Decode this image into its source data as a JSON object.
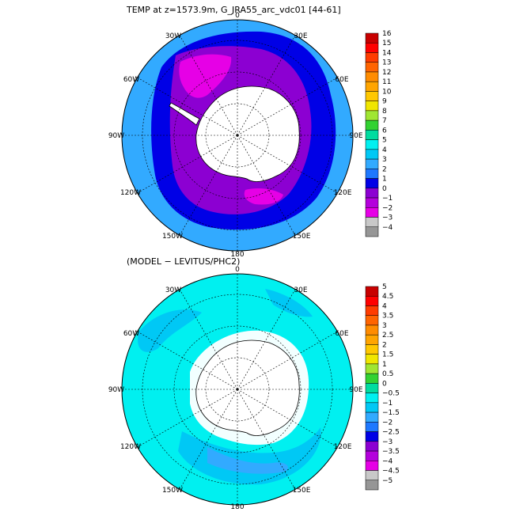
{
  "panels": [
    {
      "title": "TEMP at z=1573.9m, G_JRA55_arc_vdc01 [44-61]",
      "lon_labels": [
        "0",
        "30E",
        "60E",
        "90E",
        "120E",
        "150E",
        "180",
        "150W",
        "120W",
        "90W",
        "60W",
        "30W"
      ],
      "colorbar": {
        "labels": [
          "16",
          "15",
          "14",
          "13",
          "12",
          "11",
          "10",
          "9",
          "8",
          "7",
          "6",
          "5",
          "4",
          "3",
          "2",
          "1",
          "0",
          "−1",
          "−2",
          "−3",
          "−4"
        ],
        "colors": [
          "#c80000",
          "#ff0000",
          "#ff3c00",
          "#ff6400",
          "#ff8c00",
          "#ffa500",
          "#ffc800",
          "#f0e600",
          "#a0e632",
          "#32d232",
          "#00dca0",
          "#00f0f0",
          "#00c8f5",
          "#32aaff",
          "#1e78ff",
          "#0000e6",
          "#8c00d2",
          "#b400dc",
          "#e600e6",
          "#c8c8c8",
          "#969696"
        ]
      },
      "field_colors": {
        "outer": "#32aaff",
        "ring1": "#0000e6",
        "ring2": "#8c00d2",
        "hot": "#e600e6",
        "land": "#ffffff"
      }
    },
    {
      "title": "(MODEL − LEVITUS/PHC2)",
      "lon_labels": [
        "0",
        "30E",
        "60E",
        "90E",
        "120E",
        "150E",
        "180",
        "150W",
        "120W",
        "90W",
        "60W",
        "30W"
      ],
      "colorbar": {
        "labels": [
          "5",
          "4.5",
          "4",
          "3.5",
          "3",
          "2.5",
          "2",
          "1.5",
          "1",
          "0.5",
          "0",
          "−0.5",
          "−1",
          "−1.5",
          "−2",
          "−2.5",
          "−3",
          "−3.5",
          "−4",
          "−4.5",
          "−5"
        ],
        "colors": [
          "#c80000",
          "#ff0000",
          "#ff3c00",
          "#ff6400",
          "#ff8c00",
          "#ffa500",
          "#ffc800",
          "#f0e600",
          "#a0e632",
          "#32d232",
          "#00dca0",
          "#00f0f0",
          "#00c8f5",
          "#32aaff",
          "#1e78ff",
          "#0000e6",
          "#8c00d2",
          "#b400dc",
          "#e600e6",
          "#c8c8c8",
          "#969696"
        ]
      },
      "field_colors": {
        "outer": "#00f0f0",
        "band": "#00c8f5",
        "deep": "#32aaff",
        "land": "#ffffff"
      }
    }
  ]
}
